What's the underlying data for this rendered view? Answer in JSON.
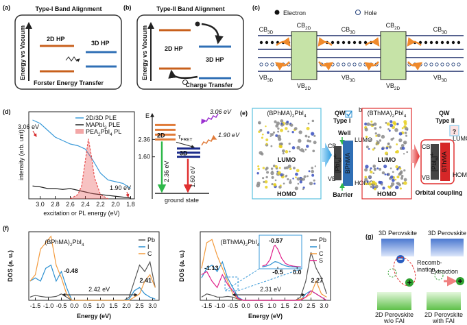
{
  "panels": {
    "a": {
      "label": "(a)",
      "title": "Type-I Band Alignment",
      "axis": "Energy vs Vacuum",
      "hp2d": "2D HP",
      "hp3d": "3D HP",
      "caption": "Forster Energy Transfer"
    },
    "b": {
      "label": "(b)",
      "title": "Type-II Band Alignment",
      "axis": "Energy vs Vacuum",
      "hp2d": "2D HP",
      "hp3d": "3D HP",
      "caption": "Charge Transfer"
    },
    "c": {
      "label": "(c)",
      "electron": "Electron",
      "hole": "Hole",
      "cb": [
        [
          "CB",
          "3D"
        ],
        [
          "CB",
          "2D"
        ],
        [
          "CB",
          "3D"
        ],
        [
          "CB",
          "2D"
        ],
        [
          "CB",
          "3D"
        ]
      ],
      "vb": [
        [
          "VB",
          "3D"
        ],
        [
          "VB",
          "2D"
        ],
        [
          "VB",
          "3D"
        ],
        [
          "VB",
          "2D"
        ],
        [
          "VB",
          "3D"
        ]
      ]
    },
    "d": {
      "label": "(d)",
      "y_label": "intensity (arb. unit)",
      "x_label": "excitation or PL energy (eV)",
      "xlim": [
        3.15,
        1.75
      ],
      "ylim": [
        0,
        1
      ],
      "xticks": [
        {
          "value": 3,
          "label": "3.0"
        },
        2.8,
        2.6,
        2.4,
        2.2,
        {
          "value": 2,
          "label": "2.0"
        },
        1.8
      ],
      "series": [
        {
          "name": "2D/3D PLE",
          "color": "#3a9ad9",
          "x": [
            3.1,
            3.0,
            2.9,
            2.8,
            2.7,
            2.6,
            2.5,
            2.4,
            2.3,
            2.2,
            2.1,
            2.0,
            1.9,
            1.8
          ],
          "values": [
            0.92,
            0.88,
            0.8,
            0.72,
            0.68,
            0.64,
            0.62,
            0.58,
            0.45,
            0.3,
            0.22,
            0.2,
            0.18,
            0.12
          ]
        },
        {
          "name": [
            "MAPbI",
            "3",
            " PLE"
          ],
          "color": "#222222",
          "x": [
            3.1,
            3.0,
            2.9,
            2.8,
            2.7,
            2.6,
            2.5,
            2.4,
            2.3,
            2.2,
            2.1,
            2.0,
            1.9,
            1.8
          ],
          "values": [
            0.15,
            0.14,
            0.12,
            0.12,
            0.11,
            0.12,
            0.1,
            0.08,
            0.06,
            0.05,
            0.04,
            0.03,
            0.02,
            0.01
          ]
        },
        {
          "name": [
            "PEA",
            "2",
            "PbI",
            "4",
            " PL"
          ],
          "color": "#e85050",
          "fill": true,
          "x": [
            2.6,
            2.5,
            2.45,
            2.4,
            2.36,
            2.32,
            2.28,
            2.2,
            2.1
          ],
          "values": [
            0,
            0.05,
            0.15,
            0.45,
            0.7,
            0.5,
            0.25,
            0.05,
            0
          ]
        }
      ],
      "annotations": [
        "3.06 eV",
        "1.90 eV"
      ]
    },
    "d_scheme": {
      "axis": "E",
      "ylim": [
        0,
        3.3
      ],
      "yticks": [
        2.36,
        {
          "value": 1.6,
          "label": "1.60"
        }
      ],
      "level_2d": "2D",
      "level_3d": "3D",
      "transfer": [
        "τ",
        "FRET"
      ],
      "absorption": "3.06 eV",
      "emission": "1.90 eV",
      "decay_2d": "2.36 eV",
      "decay_3d": "1.60 eV",
      "ground": "ground state"
    },
    "e": {
      "label": "(e)",
      "left": {
        "title": [
          "(BPhMA)",
          "2",
          "PbI",
          "4"
        ],
        "lumo": "LUMO",
        "homo": "HOMO"
      },
      "qw1": {
        "title": "QW",
        "type": "Type I",
        "well": "Well",
        "cb": "CB",
        "vb": "VB",
        "lumo": "LUMO",
        "homo": "HOMO",
        "inorganic": [
          "[PbI",
          "6",
          "]",
          "4-"
        ],
        "organic": "BPhMA",
        "barrier": "Barrier"
      },
      "right": {
        "tag": "b",
        "title": [
          "(BThMA)",
          "2",
          "PbI",
          "4"
        ],
        "lumo": "LUMO",
        "homo": "HOMO"
      },
      "qw2": {
        "title": "QW",
        "type": "Type II",
        "mark": "?",
        "cb": "CB",
        "vb": "VB",
        "lumo": "LUMO",
        "homo": "HOMO",
        "inorganic": [
          "[PbI",
          "6",
          "]",
          "4-"
        ],
        "organic": "BThMA",
        "caption": "Orbital coupling"
      }
    },
    "f": {
      "label": "(f)",
      "y_label": "DOS (a. u.)",
      "x_label": "Energy (eV)",
      "xlim": [
        -1.75,
        3.25
      ],
      "ylim": [
        0,
        1.05
      ],
      "xticks": [
        -1.5,
        {
          "value": -1,
          "label": "-1.0"
        },
        -0.5,
        {
          "value": 0,
          "label": "0.0"
        },
        0.5,
        {
          "value": 1,
          "label": "1.0"
        },
        1.5,
        {
          "value": 2,
          "label": "2.0"
        },
        2.5,
        {
          "value": 3,
          "label": "3.0"
        }
      ],
      "energy": [
        -1.7,
        -1.5,
        -1.3,
        -1.1,
        -0.9,
        -0.7,
        -0.5,
        -0.3,
        -0.1,
        0.1,
        0.3,
        0.5,
        0.7,
        0.9,
        1.1,
        1.3,
        1.5,
        1.7,
        1.9,
        2.1,
        2.3,
        2.5,
        2.7,
        2.9,
        3.1
      ],
      "plots": [
        {
          "title": [
            "(BPhMA)",
            "2",
            "PbI",
            "4"
          ],
          "title_color": "#1f77b4",
          "series": [
            {
              "name": "Pb",
              "color": "#555555",
              "values": [
                0.05,
                0.08,
                0.06,
                0.05,
                0.05,
                0.06,
                0.1,
                0.05,
                0,
                0,
                0,
                0,
                0,
                0,
                0,
                0,
                0,
                0,
                0,
                0.05,
                0.3,
                0.55,
                0.45,
                0.6,
                0.2
              ]
            },
            {
              "name": "I",
              "color": "#2a8fd0",
              "values": [
                0.3,
                0.35,
                0.3,
                0.5,
                0.55,
                0.3,
                0.45,
                0.2,
                0,
                0,
                0,
                0,
                0,
                0,
                0,
                0,
                0,
                0,
                0,
                0.02,
                0.15,
                0.2,
                0.1,
                0.05,
                0.02
              ]
            },
            {
              "name": "C",
              "color": "#f39a3c",
              "values": [
                0.3,
                0.4,
                0.8,
                0.9,
                1.0,
                0.55,
                0.35,
                0.1,
                0,
                0,
                0,
                0,
                0,
                0,
                0,
                0,
                0,
                0,
                0,
                0,
                0.05,
                0.1,
                0.3,
                0.4,
                0.2
              ]
            }
          ],
          "annotations": {
            "vbm": "-0.48",
            "cbm": "2.41",
            "gap": "2.42 eV"
          }
        },
        {
          "title": [
            "(BThMA)",
            "2",
            "PbI",
            "4"
          ],
          "title_color": "#d62728",
          "series": [
            {
              "name": "Pb",
              "color": "#555555",
              "values": [
                0.05,
                0.1,
                0.08,
                0.05,
                0.05,
                0.06,
                0.05,
                0.02,
                0,
                0,
                0,
                0,
                0,
                0,
                0,
                0,
                0,
                0,
                0,
                0.05,
                0.3,
                0.75,
                0.5,
                0.35,
                0.1
              ]
            },
            {
              "name": "I",
              "color": "#2a8fd0",
              "values": [
                0.35,
                0.5,
                0.55,
                0.45,
                0.6,
                0.35,
                0.2,
                0.05,
                0,
                0,
                0,
                0,
                0,
                0,
                0,
                0,
                0,
                0,
                0,
                0,
                0.1,
                0.15,
                0.1,
                0.05,
                0
              ]
            },
            {
              "name": "C",
              "color": "#f39a3c",
              "values": [
                0.5,
                0.9,
                0.95,
                0.7,
                0.5,
                0.3,
                0.1,
                0.02,
                0,
                0,
                0,
                0,
                0,
                0,
                0,
                0,
                0,
                0,
                0,
                0.02,
                0.05,
                0.1,
                0.3,
                0.1,
                0.05
              ]
            },
            {
              "name": "S",
              "color": "#e0208a",
              "values": [
                0.4,
                0.45,
                0.3,
                0.2,
                0.4,
                0.25,
                0.15,
                0.03,
                0,
                0,
                0,
                0,
                0,
                0,
                0,
                0,
                0,
                0,
                0,
                0,
                0.05,
                0.15,
                0.1,
                0.05,
                0
              ]
            }
          ],
          "annotations": {
            "vbm": "-1.13",
            "cbm": "2.27",
            "peak": "-0.57",
            "gap": "2.31 eV"
          },
          "inset": {
            "xlim": [
              -0.98,
              0.12
            ],
            "xticks": [
              -0.5,
              {
                "value": 0,
                "label": "0.0"
              }
            ],
            "x": [
              -0.9,
              -0.8,
              -0.7,
              -0.6,
              -0.57,
              -0.5,
              -0.4,
              -0.3,
              -0.2,
              -0.1,
              0,
              0.1
            ],
            "series": [
              {
                "color": "#e0208a",
                "values": [
                  0.05,
                  0.1,
                  0.3,
                  0.8,
                  0.85,
                  0.7,
                  0.35,
                  0.15,
                  0.08,
                  0.05,
                  0.03,
                  0.02
                ]
              },
              {
                "color": "#2a8fd0",
                "values": [
                  0.02,
                  0.05,
                  0.1,
                  0.2,
                  0.22,
                  0.2,
                  0.12,
                  0.06,
                  0.03,
                  0.02,
                  0.01,
                  0.01
                ]
              }
            ]
          }
        }
      ]
    },
    "g": {
      "label": "(g)",
      "left_top": "3D Perovskite",
      "recomb": [
        "Recomb-",
        "ination"
      ],
      "left_bottom": [
        "2D Perovskite",
        "w/o FAI"
      ],
      "right_top": "3D Perovskite",
      "extraction": "Extraction",
      "right_bottom": [
        "2D Perovskite",
        "with FAI"
      ]
    }
  }
}
